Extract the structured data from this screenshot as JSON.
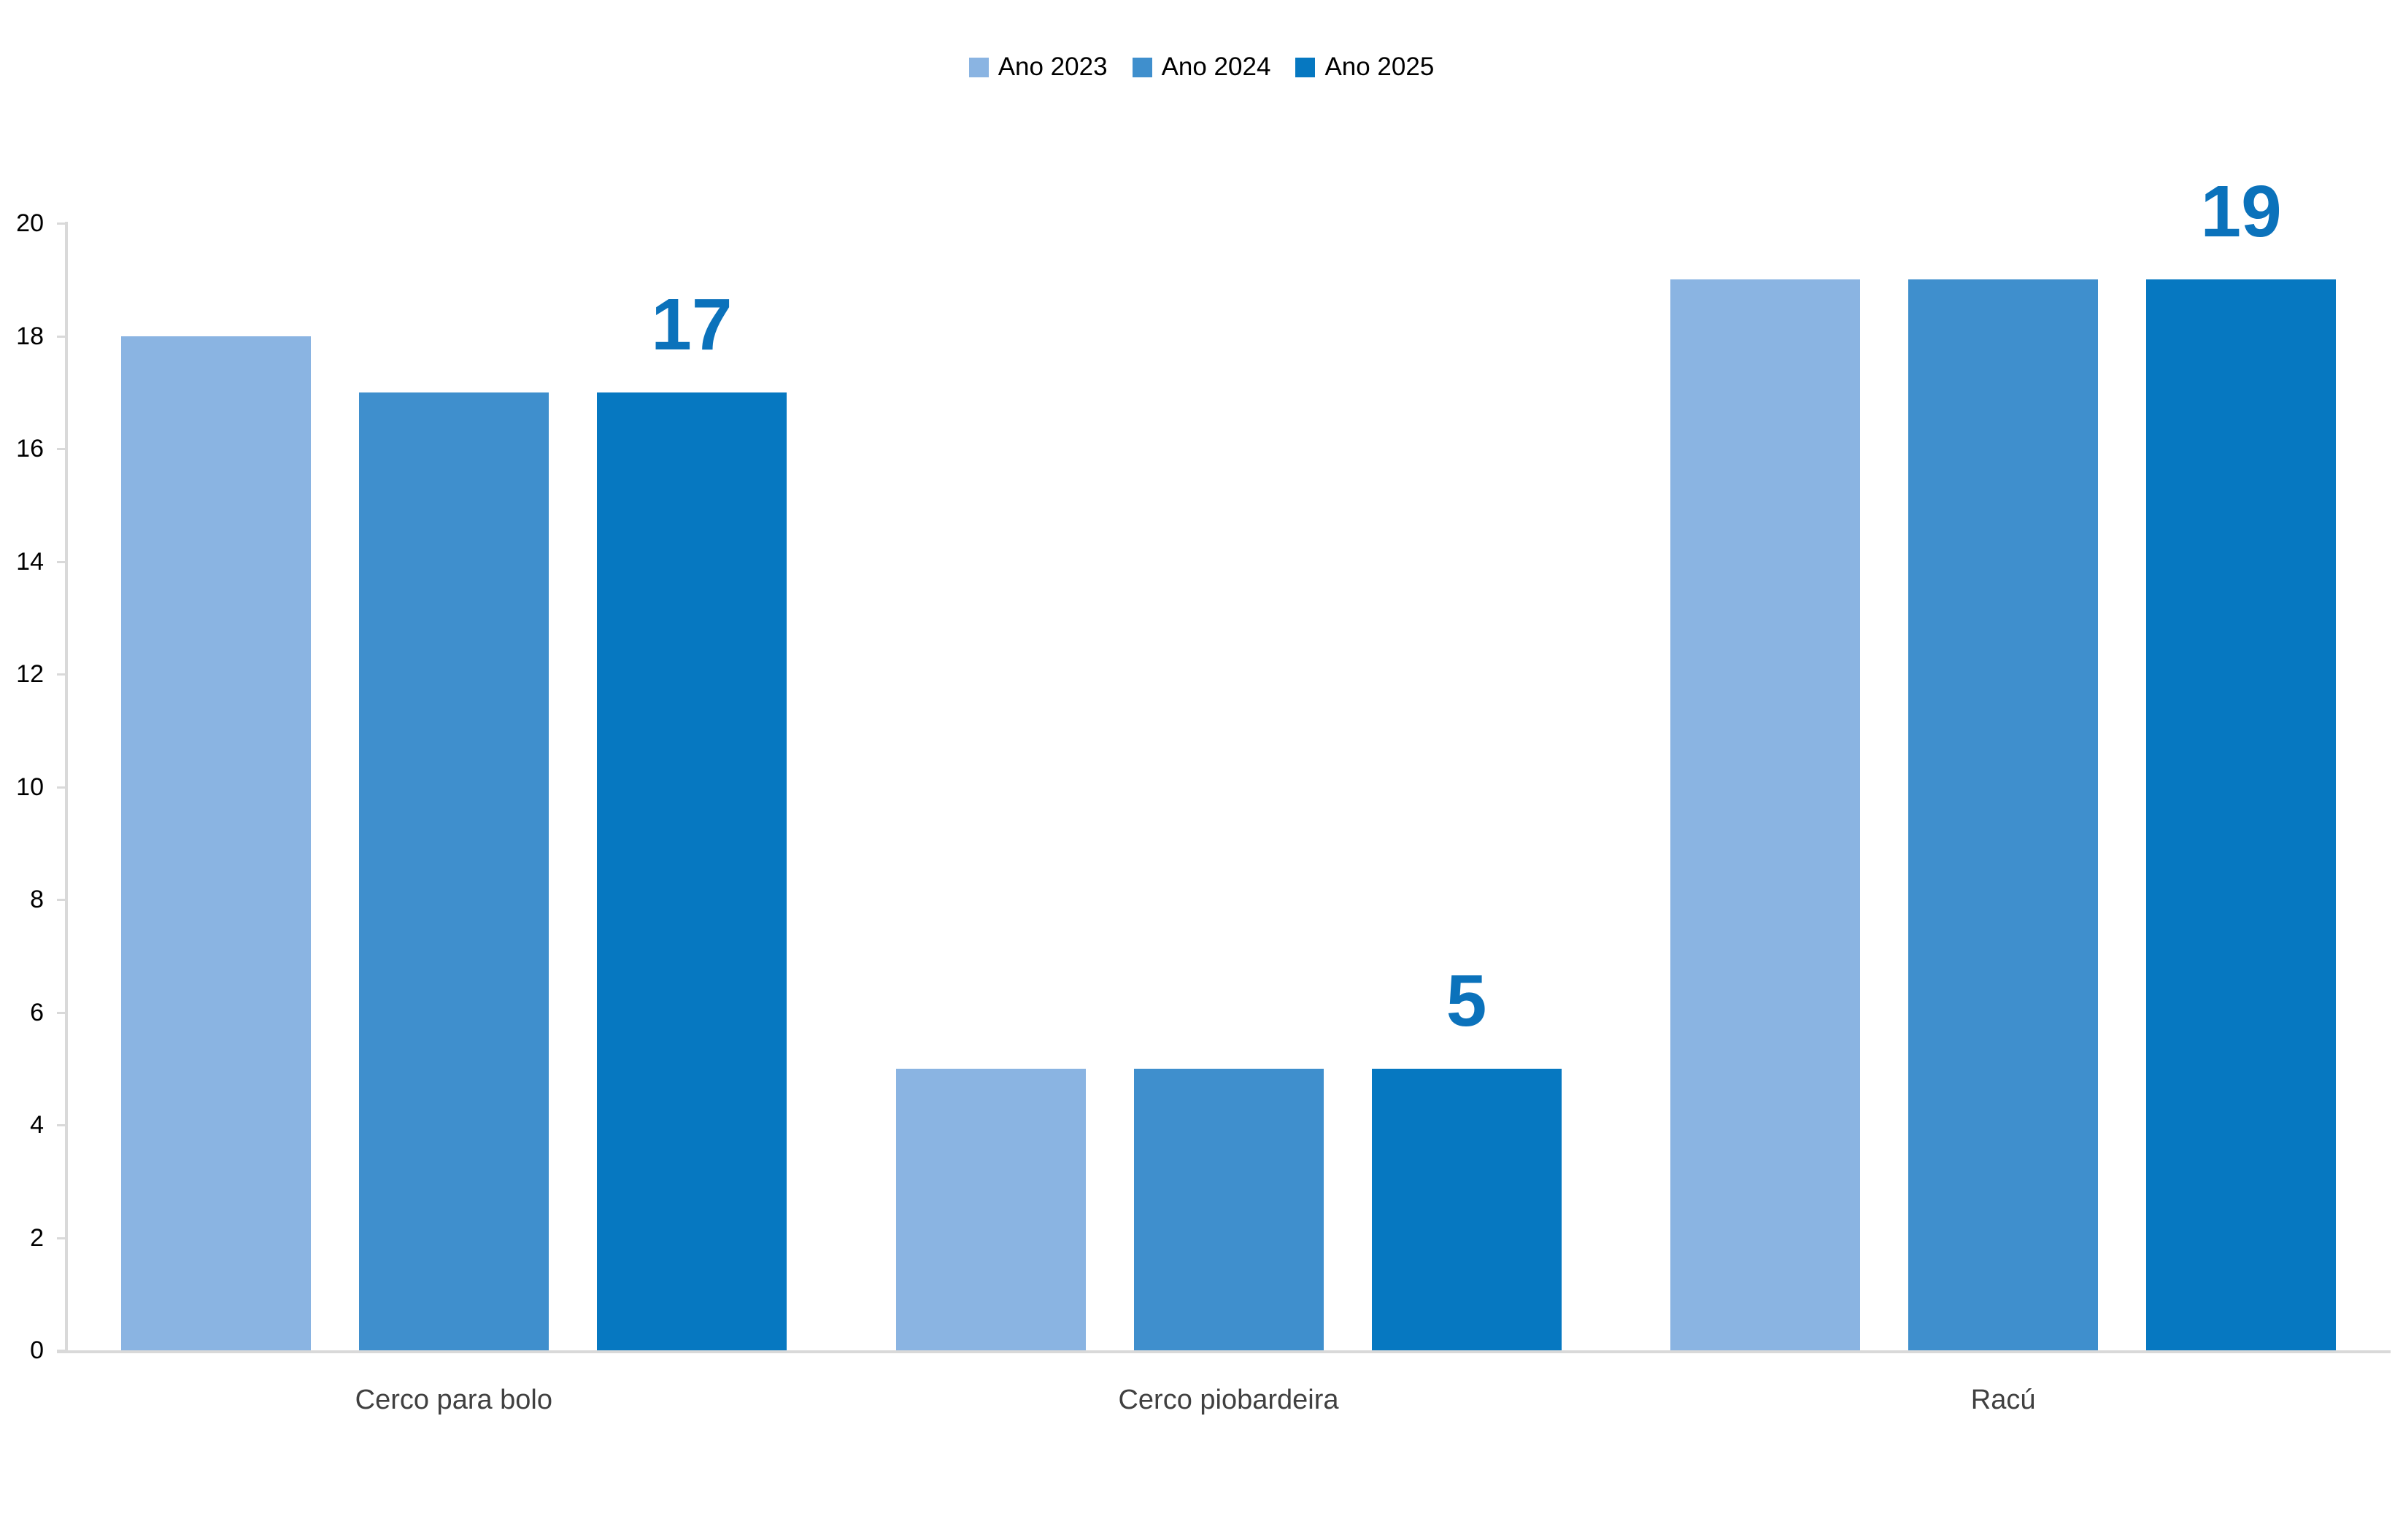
{
  "chart_data": {
    "type": "bar",
    "title": "",
    "xlabel": "",
    "ylabel": "",
    "categories": [
      "Cerco para bolo",
      "Cerco piobardeira",
      "Racú"
    ],
    "series": [
      {
        "name": "Ano 2023",
        "color": "#8ab4e2",
        "values": [
          18,
          5,
          19
        ],
        "show_labels": false
      },
      {
        "name": "Ano 2024",
        "color": "#3f8fcd",
        "values": [
          17,
          5,
          19
        ],
        "show_labels": false
      },
      {
        "name": "Ano 2025",
        "color": "#0678c1",
        "values": [
          17,
          5,
          19
        ],
        "show_labels": true
      }
    ],
    "data_labels": {
      "series": "Ano 2025",
      "values": [
        "17",
        "5",
        "19"
      ]
    },
    "ylim": [
      0,
      20
    ],
    "ytick_step": 2,
    "ytick_labels": [
      "0",
      "2",
      "4",
      "6",
      "8",
      "10",
      "12",
      "14",
      "16",
      "18",
      "20"
    ],
    "grid": false,
    "legend_position": "top-center"
  },
  "colors": {
    "background": "#ffffff",
    "axis_line": "#d9d9d9",
    "tick_label": "#000000",
    "category_label": "#404040",
    "data_label": "#0b72bb"
  }
}
